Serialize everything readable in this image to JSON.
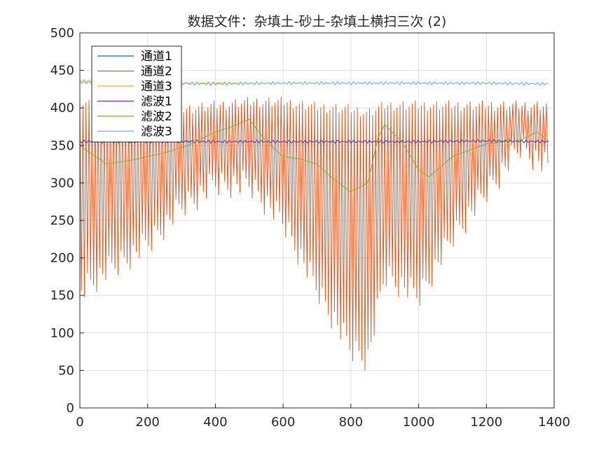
{
  "chart_data": {
    "type": "line",
    "title": "数据文件：杂填土-砂土-杂填土横扫三次 (2)",
    "xlabel": "",
    "ylabel": "",
    "xlim": [
      0,
      1400
    ],
    "ylim": [
      0,
      500
    ],
    "xticks": [
      0,
      200,
      400,
      600,
      800,
      1000,
      1200,
      1400
    ],
    "yticks": [
      0,
      50,
      100,
      150,
      200,
      250,
      300,
      350,
      400,
      450,
      500
    ],
    "grid": true,
    "legend_position": "top-left",
    "series": [
      {
        "name": "通道1",
        "color": "#0072BD",
        "kind": "flat",
        "x": [
          0,
          200,
          400,
          600,
          800,
          1000,
          1200,
          1385
        ],
        "values": [
          355,
          356,
          355,
          355,
          355,
          355,
          356,
          355
        ]
      },
      {
        "name": "通道2",
        "color": "#D95319",
        "kind": "oscillation",
        "x": [
          0,
          100,
          200,
          300,
          400,
          500,
          600,
          700,
          800,
          850,
          900,
          1000,
          1100,
          1200,
          1300,
          1385
        ],
        "peaks": [
          415,
          410,
          408,
          405,
          410,
          415,
          415,
          408,
          405,
          400,
          410,
          410,
          410,
          410,
          410,
          410
        ],
        "troughs": [
          140,
          170,
          200,
          250,
          280,
          280,
          230,
          140,
          60,
          48,
          160,
          130,
          210,
          270,
          330,
          300
        ]
      },
      {
        "name": "通道3",
        "color": "#EDB120",
        "kind": "flat",
        "x": [
          0,
          200,
          400,
          600,
          800,
          1000,
          1200,
          1385
        ],
        "values": [
          436,
          433,
          433,
          433,
          433,
          433,
          433,
          432
        ]
      },
      {
        "name": "滤波1",
        "color": "#7E2F8E",
        "kind": "flat",
        "x": [
          0,
          200,
          400,
          600,
          800,
          1000,
          1200,
          1385
        ],
        "values": [
          355,
          355,
          355,
          355,
          355,
          355,
          356,
          355
        ]
      },
      {
        "name": "滤波2",
        "color": "#77AC30",
        "kind": "smooth",
        "x": [
          0,
          30,
          80,
          150,
          250,
          320,
          400,
          450,
          500,
          550,
          600,
          650,
          700,
          750,
          800,
          850,
          880,
          900,
          950,
          1000,
          1030,
          1100,
          1200,
          1300,
          1350,
          1385
        ],
        "values": [
          350,
          340,
          325,
          330,
          340,
          350,
          368,
          375,
          385,
          355,
          335,
          332,
          325,
          305,
          288,
          300,
          360,
          378,
          355,
          318,
          308,
          335,
          352,
          357,
          368,
          355
        ]
      },
      {
        "name": "滤波3",
        "color": "#4DBEEE",
        "kind": "flat",
        "x": [
          0,
          200,
          400,
          600,
          800,
          1000,
          1200,
          1385
        ],
        "values": [
          434,
          433,
          432,
          433,
          433,
          433,
          433,
          432
        ]
      }
    ]
  }
}
